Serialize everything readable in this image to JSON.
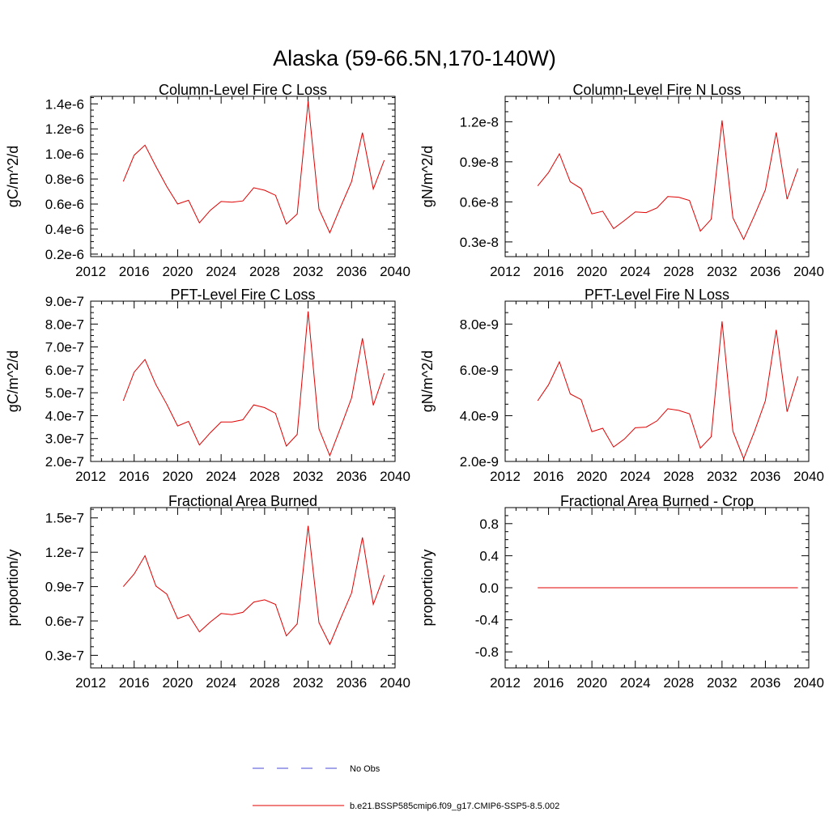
{
  "figure": {
    "title": "Alaska (59-66.5N,170-140W)"
  },
  "legend": {
    "entries": [
      {
        "label": "No Obs",
        "color": "#4a4ad6",
        "dashed": true
      },
      {
        "label": "b.e21.BSSP585cmip6.f09_g17.CMIP6-SSP5-8.5.002",
        "color": "#e00000",
        "dashed": false
      }
    ]
  },
  "chart_data": [
    {
      "type": "line",
      "title": "Column-Level Fire C Loss",
      "ylabel": "gC/m^2/d",
      "xlim": [
        2012,
        2040
      ],
      "ylim": [
        1.8e-07,
        1.46e-06
      ],
      "xticks": [
        "2012",
        "2016",
        "2020",
        "2024",
        "2028",
        "2032",
        "2036",
        "2040"
      ],
      "xtick_values": [
        2012,
        2016,
        2020,
        2024,
        2028,
        2032,
        2036,
        2040
      ],
      "yticks": [
        "0.2e-6",
        "0.4e-6",
        "0.6e-6",
        "0.8e-6",
        "1.0e-6",
        "1.2e-6",
        "1.4e-6"
      ],
      "ytick_values": [
        2e-07,
        4e-07,
        6e-07,
        8e-07,
        1e-06,
        1.2e-06,
        1.4e-06
      ],
      "series": [
        {
          "name": "b.e21.BSSP585cmip6.f09_g17.CMIP6-SSP5-8.5.002",
          "color": "#e00000",
          "x": [
            2015,
            2016,
            2017,
            2018,
            2019,
            2020,
            2021,
            2022,
            2023,
            2024,
            2025,
            2026,
            2027,
            2028,
            2029,
            2030,
            2031,
            2032,
            2033,
            2034,
            2035,
            2036,
            2037,
            2038,
            2039
          ],
          "values": [
            7.8e-07,
            9.9e-07,
            1.07e-06,
            9e-07,
            7.4e-07,
            6e-07,
            6.3e-07,
            4.5e-07,
            5.5e-07,
            6.2e-07,
            6.15e-07,
            6.25e-07,
            7.3e-07,
            7.1e-07,
            6.7e-07,
            4.4e-07,
            5.2e-07,
            1.42e-06,
            5.6e-07,
            3.7e-07,
            5.8e-07,
            7.8e-07,
            1.17e-06,
            7.2e-07,
            9.5e-07
          ]
        }
      ]
    },
    {
      "type": "line",
      "title": "Column-Level Fire N Loss",
      "ylabel": "gN/m^2/d",
      "xlim": [
        2012,
        2040
      ],
      "ylim": [
        1.9e-09,
        1.39e-08
      ],
      "xticks": [
        "2012",
        "2016",
        "2020",
        "2024",
        "2028",
        "2032",
        "2036",
        "2040"
      ],
      "xtick_values": [
        2012,
        2016,
        2020,
        2024,
        2028,
        2032,
        2036,
        2040
      ],
      "yticks": [
        "0.3e-8",
        "0.6e-8",
        "0.9e-8",
        "1.2e-8"
      ],
      "ytick_values": [
        3e-09,
        6e-09,
        9e-09,
        1.2e-08
      ],
      "series": [
        {
          "name": "b.e21.BSSP585cmip6.f09_g17.CMIP6-SSP5-8.5.002",
          "color": "#e00000",
          "x": [
            2015,
            2016,
            2017,
            2018,
            2019,
            2020,
            2021,
            2022,
            2023,
            2024,
            2025,
            2026,
            2027,
            2028,
            2029,
            2030,
            2031,
            2032,
            2033,
            2034,
            2035,
            2036,
            2037,
            2038,
            2039
          ],
          "values": [
            7.2e-09,
            8.2e-09,
            9.6e-09,
            7.5e-09,
            7e-09,
            5.1e-09,
            5.3e-09,
            4e-09,
            4.6e-09,
            5.25e-09,
            5.2e-09,
            5.55e-09,
            6.4e-09,
            6.35e-09,
            6.1e-09,
            3.8e-09,
            4.7e-09,
            1.21e-08,
            4.8e-09,
            3.2e-09,
            5e-09,
            6.9e-09,
            1.12e-08,
            6.2e-09,
            8.5e-09
          ]
        }
      ]
    },
    {
      "type": "line",
      "title": "PFT-Level Fire C Loss",
      "ylabel": "gC/m^2/d",
      "xlim": [
        2012,
        2040
      ],
      "ylim": [
        2e-07,
        9e-07
      ],
      "xticks": [
        "2012",
        "2016",
        "2020",
        "2024",
        "2028",
        "2032",
        "2036",
        "2040"
      ],
      "xtick_values": [
        2012,
        2016,
        2020,
        2024,
        2028,
        2032,
        2036,
        2040
      ],
      "yticks": [
        "2.0e-7",
        "3.0e-7",
        "4.0e-7",
        "5.0e-7",
        "6.0e-7",
        "7.0e-7",
        "8.0e-7",
        "9.0e-7"
      ],
      "ytick_values": [
        2e-07,
        3e-07,
        4e-07,
        5e-07,
        6e-07,
        7e-07,
        8e-07,
        9e-07
      ],
      "series": [
        {
          "name": "b.e21.BSSP585cmip6.f09_g17.CMIP6-SSP5-8.5.002",
          "color": "#e00000",
          "x": [
            2015,
            2016,
            2017,
            2018,
            2019,
            2020,
            2021,
            2022,
            2023,
            2024,
            2025,
            2026,
            2027,
            2028,
            2029,
            2030,
            2031,
            2032,
            2033,
            2034,
            2035,
            2036,
            2037,
            2038,
            2039
          ],
          "values": [
            4.65e-07,
            5.9e-07,
            6.45e-07,
            5.35e-07,
            4.5e-07,
            3.55e-07,
            3.75e-07,
            2.72e-07,
            3.25e-07,
            3.72e-07,
            3.72e-07,
            3.82e-07,
            4.47e-07,
            4.35e-07,
            4.1e-07,
            2.67e-07,
            3.18e-07,
            8.55e-07,
            3.42e-07,
            2.25e-07,
            3.5e-07,
            4.78e-07,
            7.38e-07,
            4.45e-07,
            5.85e-07
          ]
        }
      ]
    },
    {
      "type": "line",
      "title": "PFT-Level Fire N Loss",
      "ylabel": "gN/m^2/d",
      "xlim": [
        2012,
        2040
      ],
      "ylim": [
        2e-09,
        9e-09
      ],
      "xticks": [
        "2012",
        "2016",
        "2020",
        "2024",
        "2028",
        "2032",
        "2036",
        "2040"
      ],
      "xtick_values": [
        2012,
        2016,
        2020,
        2024,
        2028,
        2032,
        2036,
        2040
      ],
      "yticks": [
        "2.0e-9",
        "4.0e-9",
        "6.0e-9",
        "8.0e-9"
      ],
      "ytick_values": [
        2e-09,
        4e-09,
        6e-09,
        8e-09
      ],
      "series": [
        {
          "name": "b.e21.BSSP585cmip6.f09_g17.CMIP6-SSP5-8.5.002",
          "color": "#e00000",
          "x": [
            2015,
            2016,
            2017,
            2018,
            2019,
            2020,
            2021,
            2022,
            2023,
            2024,
            2025,
            2026,
            2027,
            2028,
            2029,
            2030,
            2031,
            2032,
            2033,
            2034,
            2035,
            2036,
            2037,
            2038,
            2039
          ],
          "values": [
            4.65e-09,
            5.35e-09,
            6.35e-09,
            4.95e-09,
            4.7e-09,
            3.3e-09,
            3.45e-09,
            2.63e-09,
            2.98e-09,
            3.47e-09,
            3.5e-09,
            3.77e-09,
            4.3e-09,
            4.23e-09,
            4.08e-09,
            2.58e-09,
            3.08e-09,
            8.12e-09,
            3.32e-09,
            2.12e-09,
            3.32e-09,
            4.65e-09,
            7.75e-09,
            4.17e-09,
            5.72e-09
          ]
        }
      ]
    },
    {
      "type": "line",
      "title": "Fractional Area Burned",
      "ylabel": "proportion/y",
      "xlim": [
        2012,
        2040
      ],
      "ylim": [
        1.9e-08,
        1.59e-07
      ],
      "xticks": [
        "2012",
        "2016",
        "2020",
        "2024",
        "2028",
        "2032",
        "2036",
        "2040"
      ],
      "xtick_values": [
        2012,
        2016,
        2020,
        2024,
        2028,
        2032,
        2036,
        2040
      ],
      "yticks": [
        "0.3e-7",
        "0.6e-7",
        "0.9e-7",
        "1.2e-7",
        "1.5e-7"
      ],
      "ytick_values": [
        3e-08,
        6e-08,
        9e-08,
        1.2e-07,
        1.5e-07
      ],
      "series": [
        {
          "name": "b.e21.BSSP585cmip6.f09_g17.CMIP6-SSP5-8.5.002",
          "color": "#e00000",
          "x": [
            2015,
            2016,
            2017,
            2018,
            2019,
            2020,
            2021,
            2022,
            2023,
            2024,
            2025,
            2026,
            2027,
            2028,
            2029,
            2030,
            2031,
            2032,
            2033,
            2034,
            2035,
            2036,
            2037,
            2038,
            2039
          ],
          "values": [
            9e-08,
            1.01e-07,
            1.17e-07,
            9.05e-08,
            8.35e-08,
            6.2e-08,
            6.55e-08,
            5.05e-08,
            5.9e-08,
            6.65e-08,
            6.55e-08,
            6.75e-08,
            7.65e-08,
            7.85e-08,
            7.45e-08,
            4.7e-08,
            5.75e-08,
            1.43e-07,
            5.85e-08,
            3.95e-08,
            6.25e-08,
            8.45e-08,
            1.33e-07,
            7.45e-08,
            1e-07
          ]
        }
      ]
    },
    {
      "type": "line",
      "title": "Fractional Area Burned - Crop",
      "ylabel": "proportion/y",
      "xlim": [
        2012,
        2040
      ],
      "ylim": [
        -1.0,
        1.0
      ],
      "xticks": [
        "2012",
        "2016",
        "2020",
        "2024",
        "2028",
        "2032",
        "2036",
        "2040"
      ],
      "xtick_values": [
        2012,
        2016,
        2020,
        2024,
        2028,
        2032,
        2036,
        2040
      ],
      "yticks": [
        "-0.8",
        "-0.4",
        "0.0",
        "0.4",
        "0.8"
      ],
      "ytick_values": [
        -0.8,
        -0.4,
        0.0,
        0.4,
        0.8
      ],
      "series": [
        {
          "name": "b.e21.BSSP585cmip6.f09_g17.CMIP6-SSP5-8.5.002",
          "color": "#e00000",
          "x": [
            2015,
            2016,
            2017,
            2018,
            2019,
            2020,
            2021,
            2022,
            2023,
            2024,
            2025,
            2026,
            2027,
            2028,
            2029,
            2030,
            2031,
            2032,
            2033,
            2034,
            2035,
            2036,
            2037,
            2038,
            2039
          ],
          "values": [
            0,
            0,
            0,
            0,
            0,
            0,
            0,
            0,
            0,
            0,
            0,
            0,
            0,
            0,
            0,
            0,
            0,
            0,
            0,
            0,
            0,
            0,
            0,
            0,
            0
          ]
        }
      ]
    }
  ]
}
